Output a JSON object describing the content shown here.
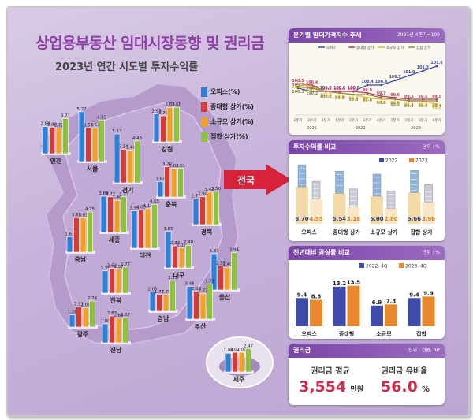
{
  "header": {
    "title": "상업용부동산 임대시장동향 및 권리금",
    "subtitle": "2023년 연간 시도별 투자수익률"
  },
  "map_legend": [
    {
      "label": "오피스(%)",
      "color": "#2f7fd9"
    },
    {
      "label": "중대형 상가(%)",
      "color": "#d43a36"
    },
    {
      "label": "소규모 상가(%)",
      "color": "#f0a022"
    },
    {
      "label": "집합 상가(%)",
      "color": "#8ec23a"
    }
  ],
  "national_label": "전국",
  "colors": {
    "office": "#2f7fd9",
    "large": "#d43a36",
    "small": "#f0a022",
    "complex": "#8ec23a",
    "y2022": "#3e4ba8",
    "y2023": "#e8892e"
  },
  "chart_data": [
    {
      "type": "bar",
      "id": "regional-returns",
      "title": "2023년 연간 시도별 투자수익률",
      "series_names": [
        "오피스(%)",
        "중대형 상가(%)",
        "소규모 상가(%)",
        "집합 상가(%)"
      ],
      "regions": [
        {
          "name": "인천",
          "values": [
            2.86,
            2.8,
            2.72,
            3.71
          ]
        },
        {
          "name": "서울",
          "values": [
            5.27,
            3.56,
            3.57,
            4.39
          ]
        },
        {
          "name": "강원",
          "values": [
            2.95,
            2.75,
            3.65,
            3.65
          ]
        },
        {
          "name": "경기",
          "values": [
            5.17,
            3.54,
            3.44,
            4.43
          ]
        },
        {
          "name": "충북",
          "values": [
            1.64,
            3.2,
            3.02,
            3.01
          ]
        },
        {
          "name": "세종",
          "values": [
            3.83,
            3.77,
            3.4,
            3.77
          ]
        },
        {
          "name": "충남",
          "values": [
            1.63,
            3.65,
            3.63,
            4.25
          ]
        },
        {
          "name": "대전",
          "values": [
            3.95,
            4.03,
            4.17,
            4.65
          ]
        },
        {
          "name": "경북",
          "values": [
            2.71,
            2.94,
            3.42,
            3.5
          ]
        },
        {
          "name": "대구",
          "values": [
            3.85,
            2.33,
            2.11,
            2.4
          ]
        },
        {
          "name": "전북",
          "values": [
            2.35,
            2.62,
            2.52,
            2.77
          ]
        },
        {
          "name": "울산",
          "values": [
            3.83,
            2.55,
            2.4,
            3.94
          ]
        },
        {
          "name": "광주",
          "values": [
            1.28,
            2.11,
            2.05,
            2.74
          ]
        },
        {
          "name": "경남",
          "values": [
            2.05,
            1.77,
            1.75,
            3.23
          ]
        },
        {
          "name": "부산",
          "values": [
            3.46,
            2.93,
            2.72,
            3.71
          ]
        },
        {
          "name": "전남",
          "values": [
            2.0,
            2.83,
            2.6,
            2.67
          ]
        },
        {
          "name": "제주",
          "values": [
            1.98,
            2.07,
            2.07,
            2.47
          ]
        }
      ]
    },
    {
      "type": "line",
      "id": "rent-index",
      "title": "분기별 임대가격지수 추세",
      "note": "2021년 4분기=100",
      "x": [
        "2분기",
        "3분기",
        "4분기",
        "1분기",
        "2분기",
        "3분기",
        "4분기",
        "1분기",
        "2분기",
        "3분기",
        "4분기"
      ],
      "x_groups": [
        "2021",
        "2022",
        "2023"
      ],
      "series": [
        {
          "name": "오피스",
          "color": "#3e4ba8",
          "values": [
            100.2,
            100.0,
            100.0,
            100.0,
            100.0,
            100.4,
            100.4,
            100.7,
            101.0,
            101.3,
            101.6
          ]
        },
        {
          "name": "중대형 상가",
          "color": "#c0395f",
          "values": [
            100.5,
            100.4,
            100.0,
            100.0,
            100.0,
            99.9,
            99.7,
            99.6,
            99.5,
            99.5,
            99.5
          ]
        },
        {
          "name": "소규모 상가",
          "color": "#e6b32a",
          "values": [
            100.5,
            100.3,
            100.0,
            99.9,
            99.8,
            99.6,
            99.5,
            99.5,
            99.4,
            99.4,
            99.2
          ]
        },
        {
          "name": "집합 상가",
          "color": "#8c8c3a",
          "values": [
            100.3,
            100.2,
            100.0,
            99.9,
            99.8,
            99.8,
            99.6,
            99.5,
            99.4,
            99.4,
            99.4
          ]
        }
      ]
    },
    {
      "type": "bar",
      "id": "investment-return",
      "title": "투자수익률 비교",
      "unit": "단위 : %",
      "categories": [
        "오피스",
        "중대형 상가",
        "소규모 상가",
        "집합 상가"
      ],
      "series": [
        {
          "name": "2022",
          "values": [
            6.7,
            5.54,
            5.0,
            5.66
          ]
        },
        {
          "name": "2023",
          "values": [
            4.55,
            3.18,
            2.8,
            3.96
          ]
        }
      ]
    },
    {
      "type": "bar",
      "id": "vacancy",
      "title": "전년대비 공실률 비교",
      "unit": "단위 : %",
      "categories": [
        "오피스",
        "중대형",
        "소규모",
        "집합"
      ],
      "series": [
        {
          "name": "2022. 4Q",
          "values": [
            9.4,
            13.2,
            6.9,
            9.4
          ]
        },
        {
          "name": "2023. 4Q",
          "values": [
            8.8,
            13.5,
            7.3,
            9.9
          ]
        }
      ]
    }
  ],
  "key_money": {
    "title": "권리금",
    "unit": "단위 : 천원, m²",
    "avg_label": "권리금 평균",
    "avg_value": "3,554",
    "avg_unit": "만원",
    "ratio_label": "권리금 유비율",
    "ratio_value": "56.0",
    "ratio_unit": "%"
  }
}
